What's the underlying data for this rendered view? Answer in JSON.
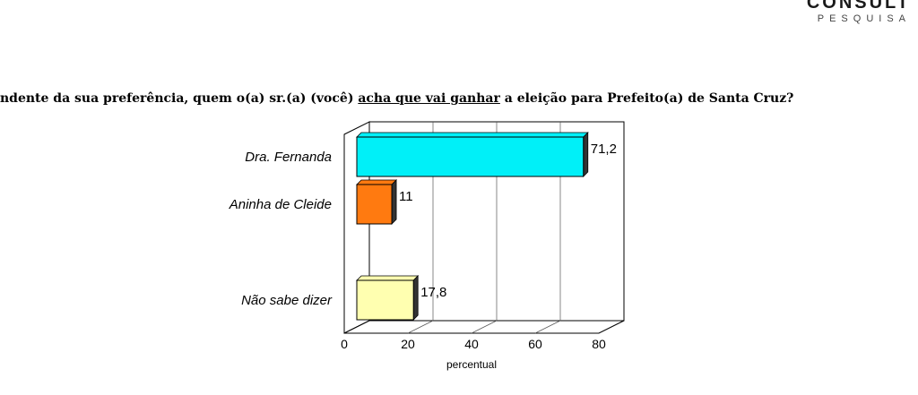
{
  "logo": {
    "name": "CONSULT",
    "sub": "PESQUISA"
  },
  "question": {
    "part1": "ndente da sua preferência, quem o(a) sr.(a) (você) ",
    "underlined": "acha que vai ganhar",
    "part2": " a eleição para Prefeito(a) de Santa Cruz?"
  },
  "chart_data": {
    "type": "bar",
    "orientation": "horizontal",
    "categories": [
      "Dra. Fernanda",
      "Aninha de Cleide",
      "Não sabe dizer"
    ],
    "values": [
      71.2,
      11,
      17.8
    ],
    "value_labels": [
      "71,2",
      "11",
      "17,8"
    ],
    "colors": [
      "#00f0f8",
      "#ff7a10",
      "#ffffb0"
    ],
    "xlabel": "percentual",
    "xlim": [
      0,
      80
    ],
    "xticks": [
      "0",
      "20",
      "40",
      "60",
      "80"
    ],
    "grid": true
  }
}
